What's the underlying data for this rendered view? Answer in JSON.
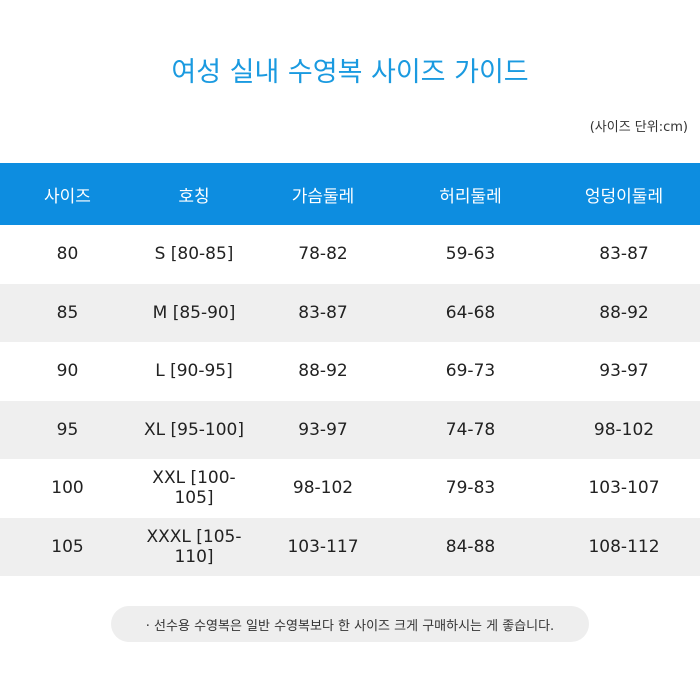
{
  "title": "여성 실내 수영복 사이즈  가이드",
  "unit_note": "(사이즈 단위:cm)",
  "table": {
    "headers": [
      "사이즈",
      "호칭",
      "가슴둘레",
      "허리둘레",
      "엉덩이둘레"
    ],
    "rows": [
      [
        "80",
        "S [80-85]",
        "78-82",
        "59-63",
        "83-87"
      ],
      [
        "85",
        "M [85-90]",
        "83-87",
        "64-68",
        "88-92"
      ],
      [
        "90",
        "L [90-95]",
        "88-92",
        "69-73",
        "93-97"
      ],
      [
        "95",
        "XL [95-100]",
        "93-97",
        "74-78",
        "98-102"
      ],
      [
        "100",
        "XXL [100-105]",
        "98-102",
        "79-83",
        "103-107"
      ],
      [
        "105",
        "XXXL [105-110]",
        "103-117",
        "84-88",
        "108-112"
      ]
    ]
  },
  "footer_note": "· 선수용 수영복은 일반 수영복보다 한 사이즈 크게 구매하시는 게 좋습니다."
}
